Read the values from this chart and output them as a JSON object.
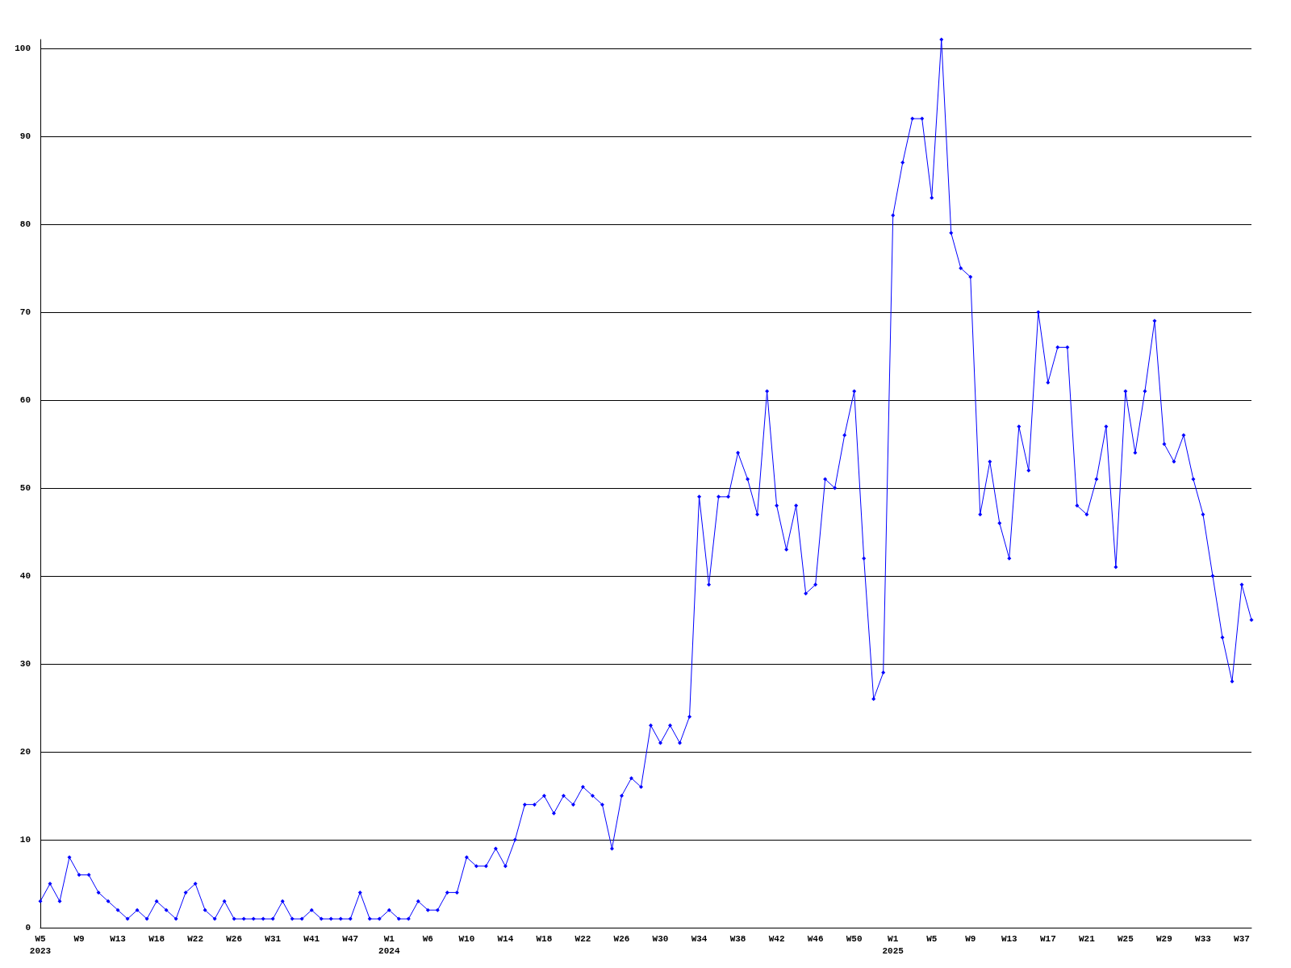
{
  "chart_data": {
    "type": "line",
    "categories": [
      "W5\n2023",
      null,
      null,
      null,
      "W9",
      null,
      null,
      null,
      "W13",
      null,
      null,
      null,
      "W18",
      null,
      null,
      null,
      "W22",
      null,
      null,
      null,
      "W26",
      null,
      null,
      null,
      "W31",
      null,
      null,
      null,
      "W41",
      null,
      null,
      null,
      "W47",
      null,
      null,
      null,
      "W1\n2024",
      null,
      null,
      null,
      "W6",
      null,
      null,
      null,
      "W10",
      null,
      null,
      null,
      "W14",
      null,
      null,
      null,
      "W18",
      null,
      null,
      null,
      "W22",
      null,
      null,
      null,
      "W26",
      null,
      null,
      null,
      "W30",
      null,
      null,
      null,
      "W34",
      null,
      null,
      null,
      "W38",
      null,
      null,
      null,
      "W42",
      null,
      null,
      null,
      "W46",
      null,
      null,
      null,
      "W50",
      null,
      null,
      null,
      "W1\n2025",
      null,
      null,
      null,
      "W5",
      null,
      null,
      null,
      "W9",
      null,
      null,
      null,
      "W13",
      null,
      null,
      null,
      "W17",
      null,
      null,
      null,
      "W21",
      null,
      null,
      null,
      "W25",
      null,
      null,
      null,
      "W29",
      null,
      null,
      null,
      "W33",
      null,
      null,
      null,
      "W37",
      null
    ],
    "series": [
      {
        "color": "#0000ff",
        "values": [
          3,
          5,
          3,
          8,
          6,
          6,
          4,
          3,
          2,
          1,
          2,
          1,
          3,
          2,
          1,
          4,
          5,
          2,
          1,
          3,
          1,
          1,
          1,
          1,
          1,
          3,
          1,
          1,
          2,
          1,
          1,
          1,
          1,
          4,
          1,
          1,
          2,
          1,
          1,
          3,
          2,
          2,
          4,
          4,
          8,
          7,
          7,
          9,
          7,
          10,
          14,
          14,
          15,
          13,
          15,
          14,
          16,
          15,
          14,
          9,
          15,
          17,
          16,
          23,
          21,
          23,
          21,
          24,
          49,
          39,
          49,
          49,
          54,
          51,
          47,
          61,
          48,
          43,
          48,
          38,
          39,
          51,
          50,
          56,
          61,
          42,
          26,
          29,
          81,
          87,
          92,
          92,
          83,
          101,
          79,
          75,
          74,
          47,
          53,
          46,
          42,
          57,
          52,
          70,
          62,
          66,
          66,
          48,
          47,
          51,
          57,
          41,
          61,
          54,
          61,
          69,
          55,
          53,
          56,
          51,
          47,
          40,
          33,
          28,
          39,
          35
        ]
      }
    ],
    "ylim": [
      0,
      101
    ],
    "yticks": [
      0,
      10,
      20,
      30,
      40,
      50,
      60,
      70,
      80,
      90,
      100
    ],
    "grid": "y",
    "marker": "diamond",
    "line_style": "solid"
  }
}
